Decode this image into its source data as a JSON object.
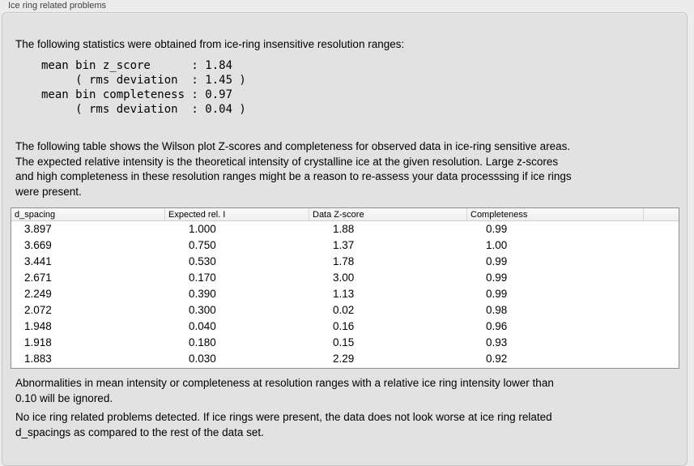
{
  "panel": {
    "title": "Ice ring related problems"
  },
  "intro": "The following statistics were obtained from ice-ring insensitive resolution ranges:",
  "stats": {
    "text": "mean bin z_score      : 1.84\n     ( rms deviation  : 1.45 )\nmean bin completeness : 0.97\n     ( rms deviation  : 0.04 )",
    "mean_bin_z_score": "1.84",
    "z_score_rms_deviation": "1.45",
    "mean_bin_completeness": "0.97",
    "completeness_rms_deviation": "0.04"
  },
  "description": "The following table shows the Wilson plot Z-scores and completeness for observed data in ice-ring sensitive areas.\nThe expected relative intensity is the theoretical intensity of crystalline ice at the given resolution. Large z-scores\nand high completeness in these resolution ranges might be a reason to re-assess your data processsing if ice rings\nwere present.",
  "table": {
    "columns": [
      "d_spacing",
      "Expected rel. I",
      "Data Z-score",
      "Completeness"
    ],
    "rows": [
      [
        "3.897",
        "1.000",
        "1.88",
        "0.99"
      ],
      [
        "3.669",
        "0.750",
        "1.37",
        "1.00"
      ],
      [
        "3.441",
        "0.530",
        "1.78",
        "0.99"
      ],
      [
        "2.671",
        "0.170",
        "3.00",
        "0.99"
      ],
      [
        "2.249",
        "0.390",
        "1.13",
        "0.99"
      ],
      [
        "2.072",
        "0.300",
        "0.02",
        "0.98"
      ],
      [
        "1.948",
        "0.040",
        "0.16",
        "0.96"
      ],
      [
        "1.918",
        "0.180",
        "0.15",
        "0.93"
      ],
      [
        "1.883",
        "0.030",
        "2.29",
        "0.92"
      ]
    ]
  },
  "footnote": "Abnormalities in mean intensity or completeness at resolution ranges with a relative ice ring intensity lower than\n0.10 will be ignored.",
  "conclusion": "No ice ring related problems detected. If ice rings were present, the data does not look worse at ice ring related\nd_spacings as compared to the rest of the data set.",
  "colors": {
    "window_bg": "#ececec",
    "panel_bg": "#e2e2e2",
    "panel_border": "#c6c6c6",
    "table_border": "#8f8f8f",
    "table_bg": "#ffffff",
    "header_bg_top": "#fbfbfb",
    "header_bg_bottom": "#efefef"
  }
}
